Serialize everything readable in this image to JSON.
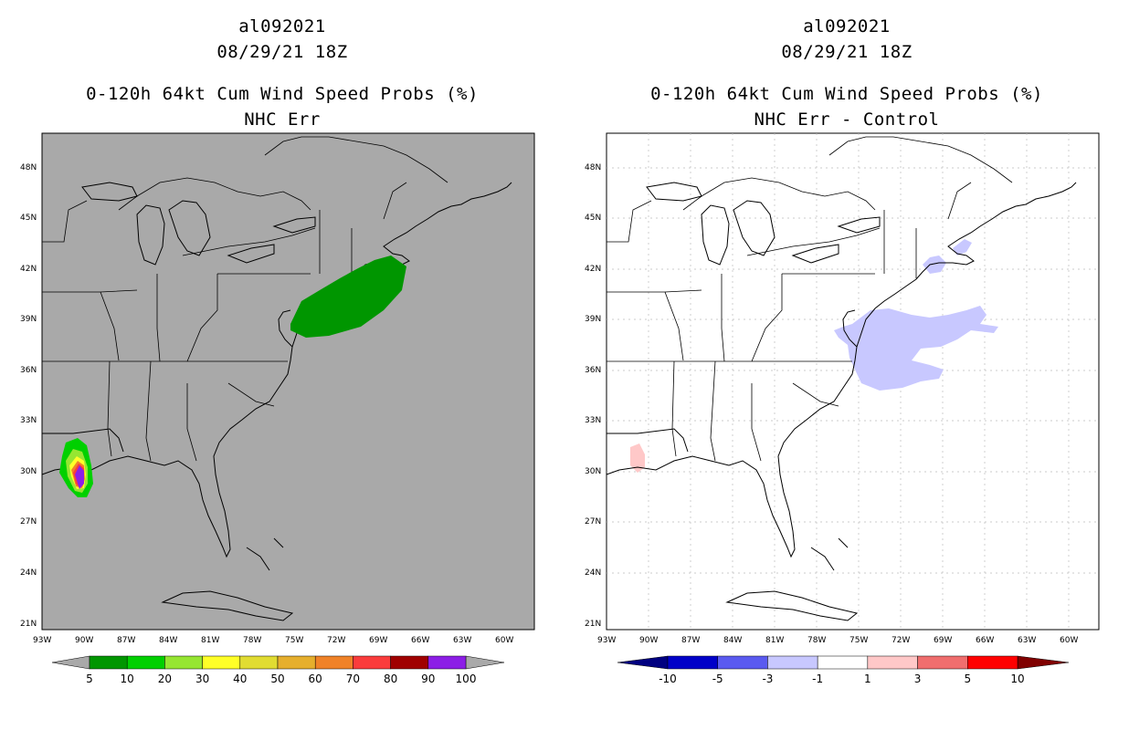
{
  "left": {
    "title_line1": "al092021",
    "title_line2": "08/29/21 18Z",
    "title_line3": "0-120h 64kt Cum Wind Speed Probs (%)",
    "title_line4": "NHC Err",
    "background_color": "#a9a9a9",
    "colorbar": {
      "labels": [
        "5",
        "10",
        "20",
        "30",
        "40",
        "50",
        "60",
        "70",
        "80",
        "90",
        "100"
      ],
      "colors": [
        "#009600",
        "#00d000",
        "#96e632",
        "#ffff28",
        "#e1dc32",
        "#e6af2d",
        "#f08228",
        "#fa3c3c",
        "#a00000",
        "#8c1ee6"
      ]
    }
  },
  "right": {
    "title_line1": "al092021",
    "title_line2": "08/29/21 18Z",
    "title_line3": "0-120h 64kt Cum Wind Speed Probs (%)",
    "title_line4": "NHC Err - Control",
    "background_color": "#ffffff",
    "colorbar": {
      "labels": [
        "-10",
        "-5",
        "-3",
        "-1",
        "1",
        "3",
        "5",
        "10"
      ],
      "colors": [
        "#0000c8",
        "#5a5af0",
        "#c8c8ff",
        "#ffffff",
        "#ffc8c8",
        "#f06e6e",
        "#ff0000"
      ],
      "end_left": "#000080",
      "end_right": "#800000"
    }
  },
  "axes": {
    "lat_labels": [
      "48N",
      "45N",
      "42N",
      "39N",
      "36N",
      "33N",
      "30N",
      "27N",
      "24N",
      "21N"
    ],
    "lon_labels": [
      "93W",
      "90W",
      "87W",
      "84W",
      "81W",
      "78W",
      "75W",
      "72W",
      "69W",
      "66W",
      "63W",
      "60W"
    ]
  }
}
